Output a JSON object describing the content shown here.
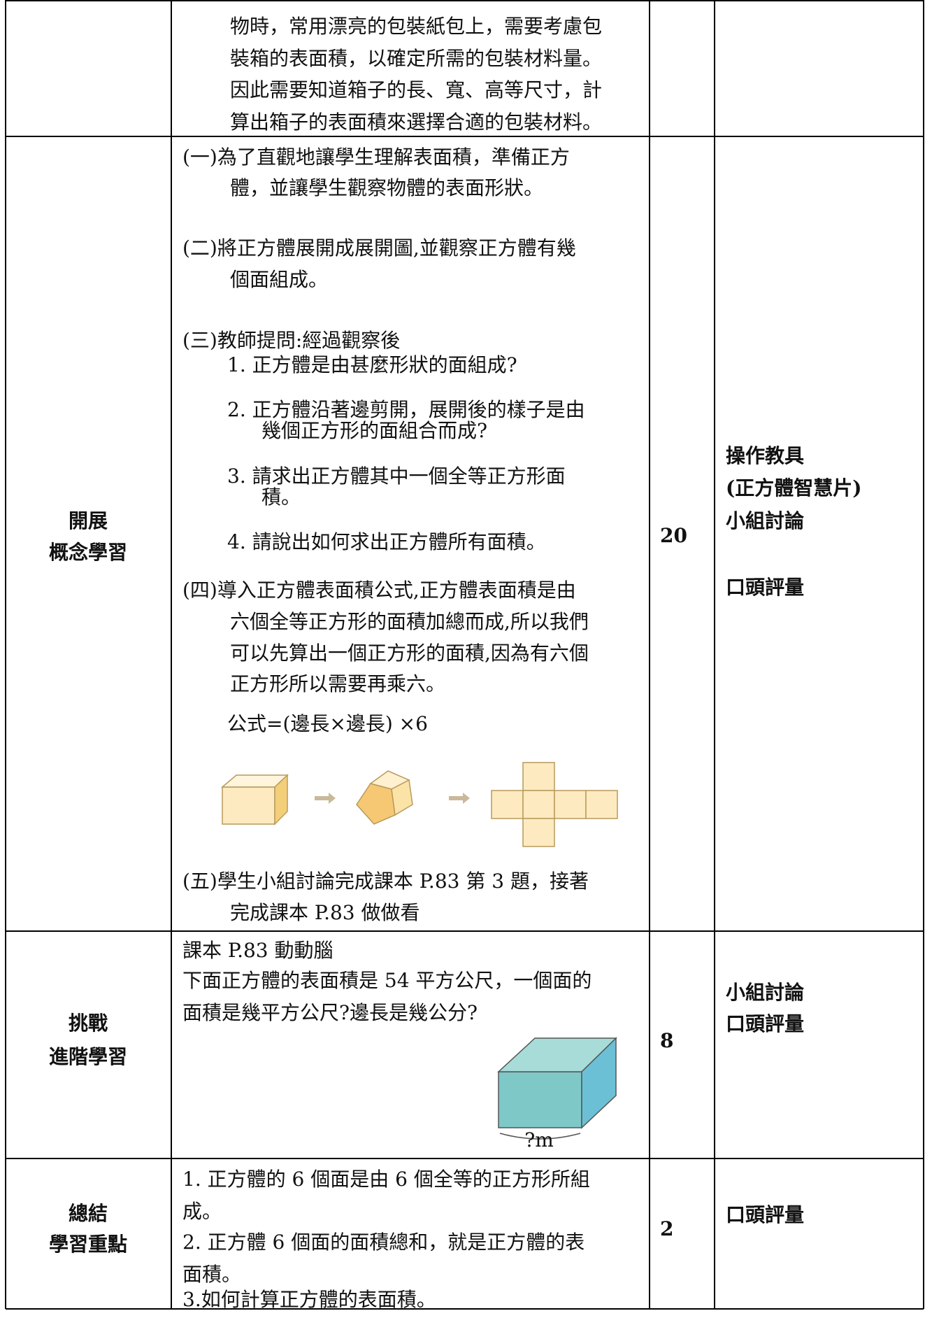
{
  "table": {
    "rows": [
      {
        "content": [
          "物時，常用漂亮的包裝紙包上，需要考慮包",
          "裝箱的表面積，以確定所需的包裝材料量。",
          "因此需要知道箱子的長、寬、高等尺寸，計",
          "算出箱子的表面積來選擇合適的包裝材料。"
        ]
      },
      {
        "stage": [
          "開展",
          "概念學習"
        ],
        "content": [
          "(一)為了直觀地讓學生理解表面積，準備正方",
          "體，並讓學生觀察物體的表面形狀。",
          "(二)將正方體展開成展開圖,並觀察正方體有幾",
          "個面組成。",
          "(三)教師提問:經過觀察後",
          "1.  正方體是由甚麼形狀的面組成?",
          "2.  正方體沿著邊剪開，展開後的樣子是由",
          "幾個正方形的面組合而成?",
          "3.  請求出正方體其中一個全等正方形面",
          "積。",
          "4.  請說出如何求出正方體所有面積。",
          "(四)導入正方體表面積公式,正方體表面積是由",
          "六個全等正方形的面積加總而成,所以我們",
          "可以先算出一個正方形的面積,因為有六個",
          "正方形所以需要再乘六。",
          "公式=(邊長×邊長) ×6",
          "(五)學生小組討論完成課本 P.83 第 3 題，接著",
          "完成課本 P.83 做做看"
        ],
        "time": "20",
        "method": [
          "操作教具",
          "(正方體智慧片)",
          "小組討論",
          "口頭評量"
        ]
      },
      {
        "stage": [
          "挑戰",
          "進階學習"
        ],
        "content": [
          "課本 P.83 動動腦",
          "下面正方體的表面積是 54 平方公尺，一個面的",
          "面積是幾平方公尺?邊長是幾公分?"
        ],
        "cube_label": "?m",
        "time": "8",
        "method": [
          "小組討論",
          "口頭評量"
        ]
      },
      {
        "stage": [
          "總結",
          "學習重點"
        ],
        "content": [
          "1.  正方體的 6 個面是由 6 個全等的正方形所組",
          "成。",
          "2.  正方體 6 個面的面積總和，就是正方體的表",
          "面積。",
          "3.如何計算正方體的表面積。"
        ],
        "time": "2",
        "method": [
          "口頭評量"
        ]
      }
    ]
  }
}
